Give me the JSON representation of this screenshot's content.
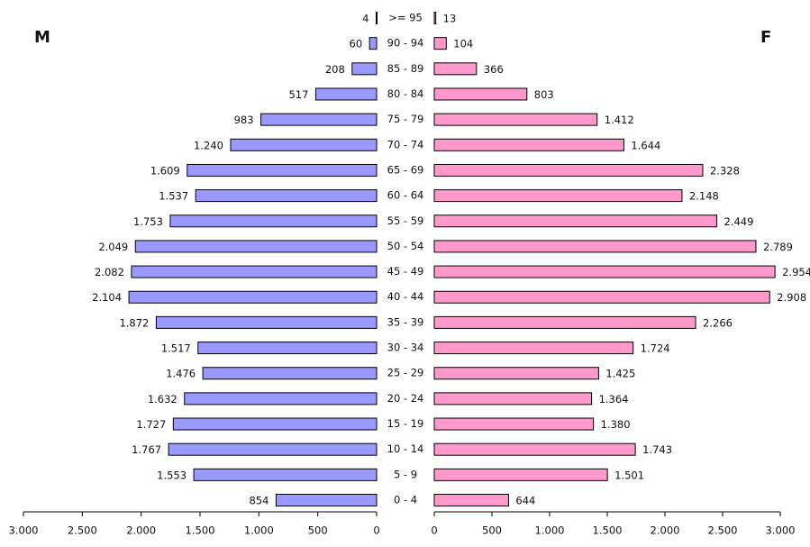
{
  "chart_data": {
    "type": "pyramid",
    "categories": [
      ">= 95",
      "90 - 94",
      "85 - 89",
      "80 - 84",
      "75 - 79",
      "70 - 74",
      "65 - 69",
      "60 - 64",
      "55 - 59",
      "50 - 54",
      "45 - 49",
      "40 - 44",
      "35 - 39",
      "30 - 34",
      "25 - 29",
      "20 - 24",
      "15 - 19",
      "10 - 14",
      "5 - 9",
      "0 - 4"
    ],
    "series": [
      {
        "name": "M",
        "color": "#9999ff",
        "values": [
          4,
          60,
          208,
          517,
          983,
          1240,
          1609,
          1537,
          1753,
          2049,
          2082,
          2104,
          1872,
          1517,
          1476,
          1632,
          1727,
          1767,
          1553,
          854
        ],
        "value_labels": [
          "4",
          "60",
          "208",
          "517",
          "983",
          "1.240",
          "1.609",
          "1.537",
          "1.753",
          "2.049",
          "2.082",
          "2.104",
          "1.872",
          "1.517",
          "1.476",
          "1.632",
          "1.727",
          "1.767",
          "1.553",
          "854"
        ]
      },
      {
        "name": "F",
        "color": "#ff99cc",
        "values": [
          13,
          104,
          366,
          803,
          1412,
          1644,
          2328,
          2148,
          2449,
          2789,
          2954,
          2908,
          2266,
          1724,
          1425,
          1364,
          1380,
          1743,
          1501,
          644
        ],
        "value_labels": [
          "13",
          "104",
          "366",
          "803",
          "1.412",
          "1.644",
          "2.328",
          "2.148",
          "2.449",
          "2.789",
          "2.954",
          "2.908",
          "2.266",
          "1.724",
          "1.425",
          "1.364",
          "1.380",
          "1.743",
          "1.501",
          "644"
        ]
      }
    ],
    "xlim": [
      0,
      3000
    ],
    "xticks": [
      0,
      500,
      {
        "value": 1000,
        "label": "1.000"
      },
      {
        "value": 1500,
        "label": "1.500"
      },
      {
        "value": 2000,
        "label": "2.000"
      },
      {
        "value": 2500,
        "label": "2.500"
      },
      {
        "value": 3000,
        "label": "3.000"
      }
    ]
  }
}
